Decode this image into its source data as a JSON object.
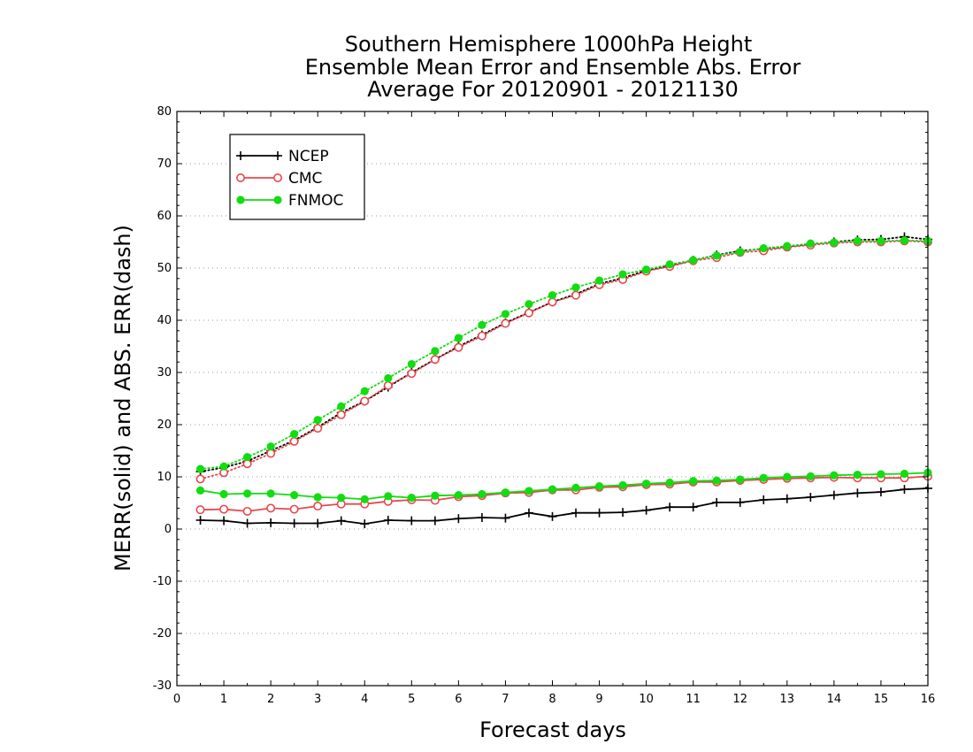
{
  "chart_data": {
    "type": "line",
    "title": [
      "Southern Hemisphere 1000hPa Height",
      "Ensemble Mean Error and Ensemble Abs. Error",
      "Average For 20120901 - 20121130"
    ],
    "xlabel": "Forecast days",
    "ylabel": "MERR(solid) and ABS. ERR(dash)",
    "xlim": [
      0,
      16
    ],
    "ylim": [
      -30,
      80
    ],
    "xticks": [
      "0",
      "1",
      "2",
      "3",
      "4",
      "5",
      "6",
      "7",
      "8",
      "9",
      "10",
      "11",
      "12",
      "13",
      "14",
      "15",
      "16"
    ],
    "yticks": [
      "-30",
      "-20",
      "-10",
      "0",
      "10",
      "20",
      "30",
      "40",
      "50",
      "60",
      "70",
      "80"
    ],
    "grid": "horizontal dotted",
    "legend_position": "top-left",
    "x": [
      0.5,
      1,
      1.5,
      2,
      2.5,
      3,
      3.5,
      4,
      4.5,
      5,
      5.5,
      6,
      6.5,
      7,
      7.5,
      8,
      8.5,
      9,
      9.5,
      10,
      10.5,
      11,
      11.5,
      12,
      12.5,
      13,
      13.5,
      14,
      14.5,
      15,
      15.5,
      16
    ],
    "series": [
      {
        "name": "NCEP",
        "color": "#000000",
        "marker": "plus",
        "merr": [
          1.7,
          1.6,
          1.1,
          1.2,
          1.1,
          1.1,
          1.6,
          1.0,
          1.7,
          1.6,
          1.6,
          2.0,
          2.2,
          2.1,
          3.1,
          2.4,
          3.1,
          3.1,
          3.2,
          3.6,
          4.2,
          4.2,
          5.1,
          5.1,
          5.6,
          5.8,
          6.1,
          6.5,
          6.9,
          7.1,
          7.6,
          7.8
        ],
        "abs_err": [
          11.0,
          11.8,
          13.0,
          15.0,
          17.0,
          19.5,
          22.3,
          24.5,
          27.2,
          30.0,
          32.5,
          35.0,
          37.2,
          39.5,
          41.5,
          43.5,
          45.0,
          47.0,
          48.1,
          49.5,
          50.5,
          51.5,
          52.5,
          53.3,
          53.7,
          54.1,
          54.6,
          55.0,
          55.4,
          55.5,
          56.0,
          55.5
        ]
      },
      {
        "name": "CMC",
        "color": "#e8474d",
        "marker": "open-circle",
        "merr": [
          3.7,
          3.8,
          3.4,
          4.0,
          3.8,
          4.4,
          4.8,
          4.8,
          5.3,
          5.6,
          5.5,
          6.2,
          6.4,
          6.9,
          7.0,
          7.5,
          7.5,
          8.0,
          8.1,
          8.5,
          8.6,
          9.0,
          9.0,
          9.3,
          9.5,
          9.7,
          9.8,
          9.9,
          9.8,
          9.8,
          9.8,
          10.1
        ],
        "abs_err": [
          9.6,
          10.8,
          12.5,
          14.5,
          16.8,
          19.3,
          21.9,
          24.5,
          27.5,
          29.8,
          32.5,
          34.8,
          37.0,
          39.4,
          41.4,
          43.5,
          44.8,
          46.8,
          47.8,
          49.4,
          50.3,
          51.4,
          52.0,
          53.0,
          53.3,
          54.0,
          54.4,
          54.8,
          55.0,
          55.0,
          55.2,
          55.0
        ]
      },
      {
        "name": "FNMOC",
        "color": "#11dd11",
        "marker": "filled-circle",
        "merr": [
          7.4,
          6.7,
          6.8,
          6.8,
          6.5,
          6.1,
          6.0,
          5.7,
          6.3,
          6.0,
          6.4,
          6.5,
          6.7,
          7.0,
          7.3,
          7.6,
          7.9,
          8.2,
          8.4,
          8.7,
          8.9,
          9.2,
          9.3,
          9.5,
          9.8,
          10.0,
          10.1,
          10.3,
          10.4,
          10.5,
          10.6,
          10.8
        ],
        "abs_err": [
          11.5,
          12.0,
          13.8,
          15.8,
          18.2,
          20.9,
          23.5,
          26.4,
          28.9,
          31.6,
          34.1,
          36.6,
          39.1,
          41.2,
          43.1,
          44.8,
          46.3,
          47.6,
          48.8,
          49.7,
          50.7,
          51.5,
          52.4,
          53.1,
          53.8,
          54.2,
          54.7,
          54.9,
          55.2,
          55.2,
          55.3,
          55.2
        ]
      }
    ]
  }
}
